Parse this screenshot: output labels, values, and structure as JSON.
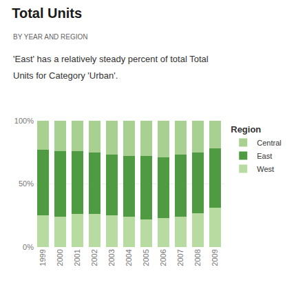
{
  "chart_data": {
    "type": "bar",
    "stacked": true,
    "title": "Total Units",
    "subtitle": "BY YEAR AND REGION",
    "annotations": [
      "'East' has a relatively steady percent of total Total",
      "Units for Category 'Urban'."
    ],
    "categories": [
      "1999",
      "2000",
      "2001",
      "2002",
      "2003",
      "2004",
      "2005",
      "2006",
      "2007",
      "2008",
      "2009"
    ],
    "series": [
      {
        "name": "West",
        "color": "#b7dba1",
        "values": [
          0.25,
          0.24,
          0.26,
          0.26,
          0.25,
          0.24,
          0.22,
          0.23,
          0.24,
          0.27,
          0.31
        ]
      },
      {
        "name": "East",
        "color": "#4e9b41",
        "values": [
          0.52,
          0.52,
          0.5,
          0.49,
          0.48,
          0.48,
          0.5,
          0.48,
          0.49,
          0.48,
          0.47
        ]
      },
      {
        "name": "Central",
        "color": "#a8d090",
        "values": [
          0.23,
          0.24,
          0.24,
          0.25,
          0.27,
          0.28,
          0.28,
          0.29,
          0.27,
          0.25,
          0.22
        ]
      }
    ],
    "legend_title": "Region",
    "legend": "upper right",
    "ylim": [
      0,
      1.0
    ],
    "yticks": [
      {
        "value": 0,
        "label": "0%"
      },
      {
        "value": 0.5,
        "label": "50%"
      },
      {
        "value": 1.0,
        "label": "100%"
      }
    ],
    "grid": true
  }
}
